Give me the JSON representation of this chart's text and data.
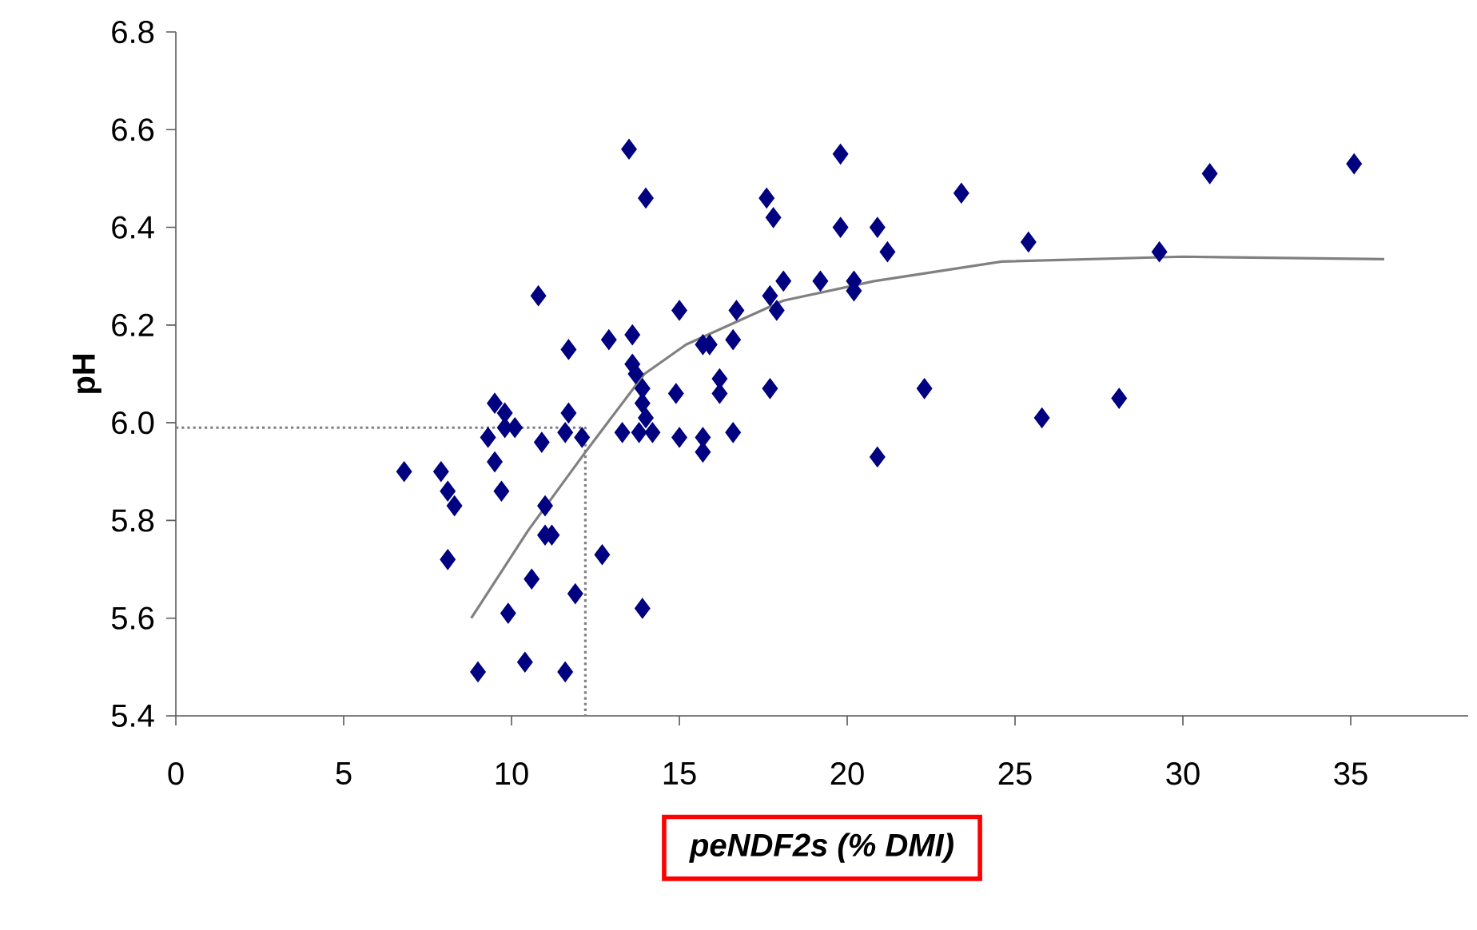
{
  "chart_data": {
    "type": "scatter",
    "xlabel": "peNDF2s (% DMI)",
    "ylabel": "pH",
    "xlim": [
      0,
      38.5
    ],
    "ylim": [
      5.4,
      6.8
    ],
    "xticks": [
      0,
      5,
      10,
      15,
      20,
      25,
      30,
      35
    ],
    "yticks": [
      {
        "value": 5.4,
        "label": "5.4"
      },
      {
        "value": 5.6,
        "label": "5.6"
      },
      {
        "value": 5.8,
        "label": "5.8"
      },
      {
        "value": 6.0,
        "label": "6.0"
      },
      {
        "value": 6.2,
        "label": "6.2"
      },
      {
        "value": 6.4,
        "label": "6.4"
      },
      {
        "value": 6.6,
        "label": "6.6"
      },
      {
        "value": 6.8,
        "label": "6.8"
      }
    ],
    "grid": false,
    "series": [
      {
        "color": "#000080",
        "marker": "diamond",
        "x": [
          6.8,
          7.9,
          8.1,
          8.3,
          8.1,
          9.0,
          9.3,
          9.5,
          9.8,
          9.5,
          9.7,
          9.8,
          10.1,
          9.9,
          10.4,
          10.6,
          10.8,
          10.9,
          11.0,
          11.0,
          11.2,
          11.6,
          11.7,
          11.7,
          11.6,
          11.9,
          12.1,
          12.7,
          12.9,
          13.3,
          13.5,
          13.6,
          13.6,
          13.7,
          13.9,
          13.9,
          14.0,
          13.8,
          14.2,
          13.9,
          14.0,
          14.9,
          15.0,
          15.0,
          15.7,
          15.9,
          15.7,
          15.7,
          16.2,
          16.2,
          16.6,
          16.6,
          16.7,
          17.6,
          17.8,
          17.7,
          17.9,
          17.7,
          18.1,
          19.2,
          19.8,
          19.8,
          20.2,
          20.2,
          20.9,
          21.2,
          20.9,
          22.3,
          23.4,
          25.4,
          25.8,
          28.1,
          29.3,
          30.8,
          35.1
        ],
        "values": [
          5.9,
          5.9,
          5.86,
          5.83,
          5.72,
          5.49,
          5.97,
          6.04,
          6.02,
          5.92,
          5.86,
          5.99,
          5.99,
          5.61,
          5.51,
          5.68,
          6.26,
          5.96,
          5.83,
          5.77,
          5.77,
          5.49,
          6.15,
          6.02,
          5.98,
          5.65,
          5.97,
          5.73,
          6.17,
          5.98,
          6.56,
          6.18,
          6.12,
          6.1,
          6.07,
          6.04,
          6.01,
          5.98,
          5.98,
          5.62,
          6.46,
          6.06,
          6.23,
          5.97,
          6.16,
          6.16,
          5.97,
          5.94,
          6.09,
          6.06,
          6.17,
          5.98,
          6.23,
          6.46,
          6.42,
          6.26,
          6.23,
          6.07,
          6.29,
          6.29,
          6.55,
          6.4,
          6.29,
          6.27,
          6.4,
          6.35,
          5.93,
          6.07,
          6.47,
          6.37,
          6.01,
          6.05,
          6.35,
          6.51,
          6.53
        ]
      },
      {
        "type": "line",
        "color": "#808080",
        "line_style": "solid",
        "marker": "none",
        "x": [
          8.8,
          10.5,
          12.2,
          13.96,
          15.2,
          18.1,
          20.8,
          24.6,
          30,
          36
        ],
        "values": [
          5.6,
          5.78,
          5.94,
          6.1,
          6.16,
          6.25,
          6.29,
          6.33,
          6.34,
          6.335
        ]
      },
      {
        "type": "line",
        "color": "#808080",
        "line_style": "dotted",
        "marker": "none",
        "x": [
          0,
          12.2,
          12.2
        ],
        "values": [
          5.99,
          5.99,
          5.4
        ]
      }
    ]
  }
}
